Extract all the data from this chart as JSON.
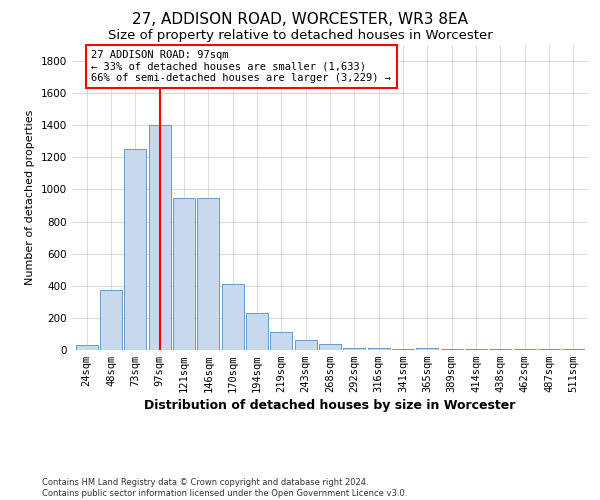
{
  "title": "27, ADDISON ROAD, WORCESTER, WR3 8EA",
  "subtitle": "Size of property relative to detached houses in Worcester",
  "xlabel": "Distribution of detached houses by size in Worcester",
  "ylabel": "Number of detached properties",
  "categories": [
    "24sqm",
    "48sqm",
    "73sqm",
    "97sqm",
    "121sqm",
    "146sqm",
    "170sqm",
    "194sqm",
    "219sqm",
    "243sqm",
    "268sqm",
    "292sqm",
    "316sqm",
    "341sqm",
    "365sqm",
    "389sqm",
    "414sqm",
    "438sqm",
    "462sqm",
    "487sqm",
    "511sqm"
  ],
  "values": [
    30,
    375,
    1250,
    1400,
    950,
    950,
    410,
    230,
    110,
    60,
    35,
    15,
    12,
    8,
    10,
    5,
    5,
    5,
    5,
    5,
    5
  ],
  "bar_color": "#c9d9ed",
  "bar_edge_color": "#6699cc",
  "highlight_index": 3,
  "ylim": [
    0,
    1900
  ],
  "yticks": [
    0,
    200,
    400,
    600,
    800,
    1000,
    1200,
    1400,
    1600,
    1800
  ],
  "annotation_text": "27 ADDISON ROAD: 97sqm\n← 33% of detached houses are smaller (1,633)\n66% of semi-detached houses are larger (3,229) →",
  "footer_text": "Contains HM Land Registry data © Crown copyright and database right 2024.\nContains public sector information licensed under the Open Government Licence v3.0.",
  "grid_color": "#cccccc",
  "background_color": "#ffffff",
  "title_fontsize": 11,
  "subtitle_fontsize": 9.5,
  "tick_fontsize": 7.5,
  "ylabel_fontsize": 8,
  "xlabel_fontsize": 9,
  "footer_fontsize": 6,
  "annotation_fontsize": 7.5
}
